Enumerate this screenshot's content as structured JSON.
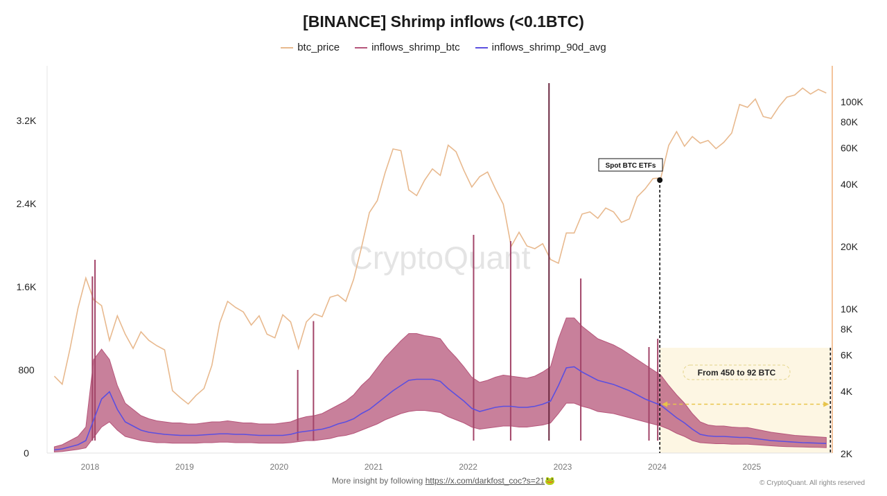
{
  "chart_data": {
    "type": "line",
    "title": "[BINANCE] Shrimp inflows (<0.1BTC)",
    "legend": [
      "btc_price",
      "inflows_shrimp_btc",
      "inflows_shrimp_90d_avg"
    ],
    "legend_placement": "top-center",
    "colors": {
      "btc_price": "#e8b98e",
      "inflows_shrimp_btc": "#b5557a",
      "inflows_shrimp_90d_avg": "#5b4fe0",
      "highlight": "#fdf6e3",
      "annotation": "#e8c44a"
    },
    "x_ticks": [
      "2018",
      "2019",
      "2020",
      "2021",
      "2022",
      "2023",
      "2024",
      "2025"
    ],
    "y_left": {
      "ticks": [
        0,
        800,
        1600,
        2400,
        3200
      ],
      "tick_labels": [
        "0",
        "800",
        "1.6K",
        "2.4K",
        "3.2K"
      ],
      "range": [
        0,
        3700
      ]
    },
    "y_right": {
      "scale": "log",
      "ticks": [
        2000,
        4000,
        6000,
        8000,
        10000,
        20000,
        40000,
        60000,
        80000,
        100000
      ],
      "tick_labels": [
        "2K",
        "4K",
        "6K",
        "8K",
        "10K",
        "20K",
        "40K",
        "60K",
        "80K",
        "100K"
      ],
      "range": [
        2000,
        130000
      ]
    },
    "months": [
      "2017-08",
      "2017-09",
      "2017-10",
      "2017-11",
      "2017-12",
      "2018-01",
      "2018-02",
      "2018-03",
      "2018-04",
      "2018-05",
      "2018-06",
      "2018-07",
      "2018-08",
      "2018-09",
      "2018-10",
      "2018-11",
      "2018-12",
      "2019-01",
      "2019-02",
      "2019-03",
      "2019-04",
      "2019-05",
      "2019-06",
      "2019-07",
      "2019-08",
      "2019-09",
      "2019-10",
      "2019-11",
      "2019-12",
      "2020-01",
      "2020-02",
      "2020-03",
      "2020-04",
      "2020-05",
      "2020-06",
      "2020-07",
      "2020-08",
      "2020-09",
      "2020-10",
      "2020-11",
      "2020-12",
      "2021-01",
      "2021-02",
      "2021-03",
      "2021-04",
      "2021-05",
      "2021-06",
      "2021-07",
      "2021-08",
      "2021-09",
      "2021-10",
      "2021-11",
      "2021-12",
      "2022-01",
      "2022-02",
      "2022-03",
      "2022-04",
      "2022-05",
      "2022-06",
      "2022-07",
      "2022-08",
      "2022-09",
      "2022-10",
      "2022-11",
      "2022-12",
      "2023-01",
      "2023-02",
      "2023-03",
      "2023-04",
      "2023-05",
      "2023-06",
      "2023-07",
      "2023-08",
      "2023-09",
      "2023-10",
      "2023-11",
      "2023-12",
      "2024-01",
      "2024-02",
      "2024-03",
      "2024-04",
      "2024-05",
      "2024-06",
      "2024-07",
      "2024-08",
      "2024-09",
      "2024-10",
      "2024-11",
      "2024-12",
      "2025-01",
      "2025-02",
      "2025-03",
      "2025-04",
      "2025-05",
      "2025-06",
      "2025-07",
      "2025-08",
      "2025-09",
      "2025-10"
    ],
    "series": [
      {
        "name": "btc_price",
        "axis": "right",
        "values": [
          4700,
          4300,
          6400,
          10000,
          14000,
          11000,
          10300,
          7000,
          9200,
          7500,
          6400,
          7700,
          7000,
          6600,
          6300,
          4000,
          3700,
          3450,
          3800,
          4100,
          5300,
          8500,
          10800,
          10100,
          9600,
          8300,
          9200,
          7500,
          7200,
          9300,
          8600,
          6400,
          8600,
          9400,
          9100,
          11300,
          11600,
          10800,
          13800,
          19700,
          29000,
          33100,
          45200,
          58800,
          57700,
          37300,
          35000,
          41500,
          47100,
          43800,
          61300,
          57000,
          46300,
          38500,
          43200,
          45500,
          37700,
          31800,
          19900,
          23300,
          20000,
          19400,
          20500,
          17200,
          16500,
          23100,
          23100,
          28500,
          29200,
          27200,
          30500,
          29200,
          26000,
          27000,
          34500,
          37700,
          42300,
          42600,
          61200,
          71300,
          60600,
          67500,
          62700,
          64600,
          59000,
          63300,
          70200,
          96400,
          93400,
          102400,
          84300,
          82500,
          94200,
          104600,
          107100,
          115700,
          108200,
          114000,
          109500
        ]
      },
      {
        "name": "inflows_shrimp_btc",
        "axis": "left",
        "low": [
          10,
          15,
          25,
          35,
          50,
          150,
          250,
          300,
          220,
          160,
          140,
          120,
          110,
          100,
          100,
          95,
          95,
          95,
          95,
          100,
          100,
          105,
          105,
          100,
          100,
          100,
          95,
          95,
          95,
          95,
          100,
          110,
          120,
          120,
          130,
          140,
          160,
          170,
          190,
          220,
          250,
          280,
          320,
          350,
          380,
          400,
          410,
          410,
          400,
          390,
          350,
          320,
          290,
          250,
          230,
          240,
          250,
          260,
          260,
          250,
          250,
          260,
          270,
          290,
          380,
          480,
          480,
          450,
          430,
          400,
          390,
          380,
          360,
          340,
          320,
          300,
          280,
          260,
          230,
          190,
          160,
          120,
          100,
          95,
          90,
          90,
          85,
          85,
          85,
          80,
          75,
          70,
          65,
          62,
          60,
          58,
          56,
          55,
          52
        ],
        "high": [
          60,
          80,
          120,
          160,
          250,
          900,
          1000,
          900,
          650,
          480,
          420,
          360,
          330,
          310,
          300,
          290,
          290,
          280,
          280,
          290,
          300,
          300,
          310,
          300,
          290,
          290,
          280,
          280,
          280,
          290,
          300,
          330,
          350,
          360,
          380,
          420,
          460,
          500,
          560,
          650,
          720,
          820,
          920,
          1000,
          1080,
          1150,
          1150,
          1130,
          1120,
          1100,
          1000,
          920,
          830,
          730,
          680,
          700,
          730,
          750,
          740,
          730,
          720,
          740,
          780,
          830,
          1100,
          1300,
          1300,
          1220,
          1160,
          1100,
          1070,
          1040,
          1000,
          950,
          900,
          850,
          800,
          750,
          650,
          560,
          480,
          380,
          300,
          270,
          260,
          260,
          250,
          245,
          245,
          230,
          215,
          200,
          190,
          180,
          170,
          165,
          160,
          155,
          150
        ],
        "spikes": [
          [
            "2018-01-10",
            1700
          ],
          [
            "2018-01-20",
            1860
          ],
          [
            "2020-03-12",
            800
          ],
          [
            "2020-05-12",
            1270
          ],
          [
            "2022-01-22",
            2100
          ],
          [
            "2022-06-13",
            2040
          ],
          [
            "2022-11-09",
            3560
          ],
          [
            "2023-03-10",
            1680
          ],
          [
            "2023-11-30",
            1020
          ],
          [
            "2024-01-03",
            1100
          ]
        ]
      },
      {
        "name": "inflows_shrimp_90d_avg",
        "axis": "left",
        "values": [
          30,
          40,
          60,
          80,
          120,
          320,
          520,
          590,
          420,
          300,
          260,
          220,
          200,
          190,
          180,
          175,
          170,
          170,
          170,
          175,
          180,
          185,
          185,
          180,
          180,
          175,
          170,
          170,
          170,
          170,
          180,
          200,
          210,
          220,
          230,
          250,
          280,
          300,
          330,
          380,
          420,
          480,
          540,
          600,
          650,
          700,
          710,
          710,
          710,
          690,
          620,
          560,
          500,
          430,
          400,
          420,
          440,
          450,
          450,
          440,
          440,
          450,
          470,
          500,
          650,
          820,
          830,
          780,
          740,
          700,
          680,
          660,
          630,
          600,
          560,
          520,
          490,
          460,
          400,
          340,
          290,
          230,
          180,
          165,
          160,
          160,
          155,
          150,
          150,
          140,
          130,
          120,
          115,
          110,
          105,
          100,
          98,
          95,
          92
        ]
      }
    ],
    "annotations": {
      "etf_label": "Spot BTC ETFs",
      "etf_date": "2024-01-11",
      "range_label": "From 450 to 92 BTC",
      "range_start": "2024-01-11",
      "range_end": "2025-10-31",
      "range_level": 470
    },
    "watermark": "CryptoQuant"
  },
  "footer": {
    "text": "More insight by following",
    "link": "https://x.com/darkfost_coc?s=21",
    "emoji": "🐸",
    "copyright": "© CryptoQuant. All rights reserved"
  }
}
